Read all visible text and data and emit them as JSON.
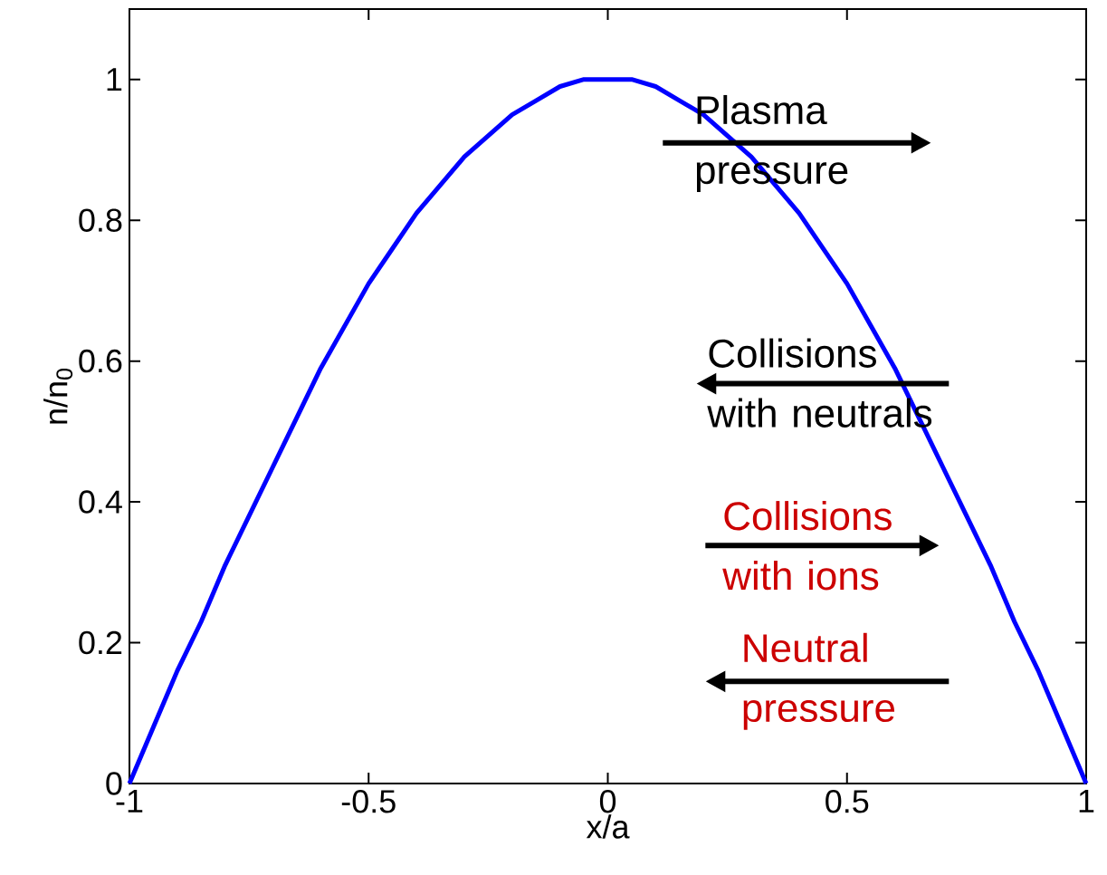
{
  "chart_data": {
    "type": "line",
    "xlabel": "x/a",
    "ylabel": "n/n$_{0}$",
    "x": [
      -1,
      -0.95,
      -0.9,
      -0.85,
      -0.8,
      -0.75,
      -0.7,
      -0.65,
      -0.6,
      -0.55,
      -0.5,
      -0.45,
      -0.4,
      -0.35,
      -0.3,
      -0.25,
      -0.2,
      -0.15,
      -0.1,
      -0.05,
      0,
      0.05,
      0.1,
      0.15,
      0.2,
      0.25,
      0.3,
      0.35,
      0.4,
      0.45,
      0.5,
      0.55,
      0.6,
      0.65,
      0.7,
      0.75,
      0.8,
      0.85,
      0.9,
      0.95,
      1
    ],
    "series": [
      {
        "color": "#0000ff",
        "values": [
          0,
          0.08,
          0.16,
          0.23,
          0.31,
          0.38,
          0.45,
          0.52,
          0.59,
          0.65,
          0.71,
          0.76,
          0.81,
          0.85,
          0.89,
          0.92,
          0.95,
          0.97,
          0.99,
          1,
          1,
          1,
          0.99,
          0.97,
          0.95,
          0.92,
          0.89,
          0.85,
          0.81,
          0.76,
          0.71,
          0.65,
          0.59,
          0.52,
          0.45,
          0.38,
          0.31,
          0.23,
          0.16,
          0.08,
          0
        ]
      }
    ],
    "xlim": [
      -1,
      1
    ],
    "ylim": [
      0,
      1.1
    ],
    "xticks": [
      -1,
      -0.5,
      0,
      0.5,
      1
    ],
    "yticks": [
      0,
      0.2,
      0.4,
      0.6,
      0.8,
      1
    ],
    "grid": false,
    "legend": false,
    "marker": "none",
    "line_style": "solid",
    "annotations": [
      "Plasma pressure",
      "Collisions with neutrals",
      "Collisions with ions",
      "Neutral pressure"
    ]
  }
}
